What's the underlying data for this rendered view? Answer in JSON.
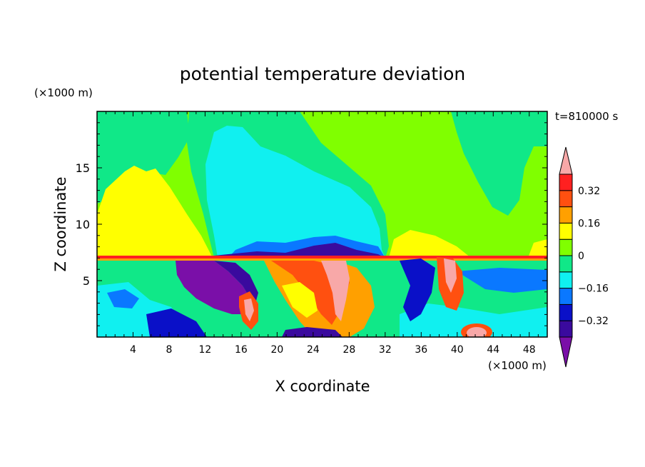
{
  "chart_data": {
    "type": "heatmap",
    "title": "potential temperature deviation",
    "xlabel": "X coordinate",
    "ylabel": "Z coordinate",
    "x_unit": "(×1000 m)",
    "y_unit": "(×1000 m)",
    "time_label": "t=810000 s",
    "xlim": [
      0,
      50
    ],
    "ylim": [
      0,
      20
    ],
    "x_ticks": [
      4,
      8,
      12,
      16,
      20,
      24,
      28,
      32,
      36,
      40,
      44,
      48
    ],
    "y_ticks": [
      5,
      10,
      15
    ],
    "colorbar": {
      "levels": [
        -0.4,
        -0.32,
        -0.24,
        -0.16,
        -0.08,
        0,
        0.08,
        0.16,
        0.24,
        0.32,
        0.4
      ],
      "tick_labels": [
        "0.32",
        "0.16",
        "0",
        "−0.16",
        "−0.32"
      ],
      "tick_values": [
        0.32,
        0.16,
        0,
        -0.16,
        -0.32
      ],
      "colors": [
        "#7a0fa8",
        "#3a0a9e",
        "#0a10c8",
        "#0a78ff",
        "#10f0f0",
        "#10e888",
        "#80ff00",
        "#ffff00",
        "#ffa000",
        "#ff5010",
        "#ff2020",
        "#f8a8a8"
      ],
      "extend": "both"
    },
    "regions": [
      {
        "desc": "upper background",
        "value": 0.04
      },
      {
        "desc": "yellow warm region left",
        "value": 0.12,
        "x": [
          0,
          13
        ],
        "y": [
          7,
          15
        ]
      },
      {
        "desc": "cyan cool plume",
        "value": -0.08,
        "x": [
          13,
          32
        ],
        "y": [
          7,
          18.5
        ]
      },
      {
        "desc": "green upper right",
        "value": 0.0,
        "x": [
          40,
          50
        ],
        "y": [
          11,
          20
        ]
      },
      {
        "desc": "purple cold blob",
        "value": -0.4,
        "x": [
          8,
          15
        ],
        "y": [
          3,
          7
        ]
      },
      {
        "desc": "warm plume center",
        "value": 0.3,
        "x": [
          18,
          31
        ],
        "y": [
          0,
          7
        ]
      }
    ]
  }
}
